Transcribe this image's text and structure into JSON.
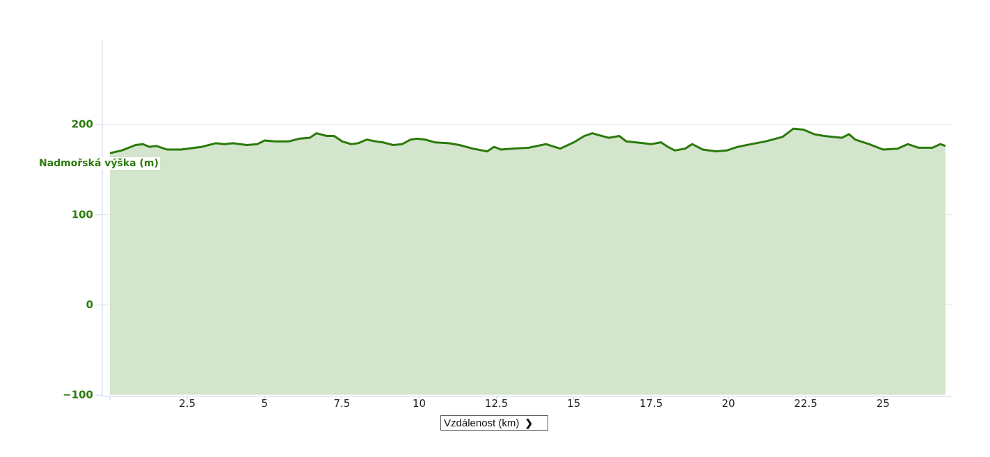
{
  "chart_data": {
    "type": "area",
    "title": "",
    "ylabel": "Nadmořská výška (m)",
    "xlabel": "Vzdálenost (km)",
    "ylim": [
      -100,
      300
    ],
    "xlim": [
      0,
      27.3
    ],
    "yticks": [
      -100,
      0,
      100,
      200
    ],
    "ytick_labels": [
      "−100",
      "0",
      "100",
      "200"
    ],
    "xticks": [
      2.5,
      5,
      7.5,
      10,
      12.5,
      15,
      17.5,
      20,
      22.5,
      25
    ],
    "xtick_labels": [
      "2.5",
      "5",
      "7.5",
      "10",
      "12.5",
      "15",
      "17.5",
      "20",
      "22.5",
      "25"
    ],
    "grid": true,
    "colors": {
      "line": "#2b7a0b",
      "fill": "#d3e5cc",
      "axis": "#ccd6eb",
      "grid": "#e6e6e6"
    },
    "series": [
      {
        "x": [
          0,
          0.38,
          0.83,
          1.06,
          1.28,
          1.5,
          1.85,
          2.3,
          2.97,
          3.42,
          3.7,
          3.98,
          4.43,
          4.77,
          5,
          5.33,
          5.78,
          6.12,
          6.46,
          6.68,
          7.02,
          7.25,
          7.51,
          7.8,
          8.03,
          8.3,
          8.6,
          8.82,
          9.16,
          9.45,
          9.72,
          9.94,
          10.2,
          10.5,
          10.96,
          11.3,
          11.74,
          12.2,
          12.42,
          12.65,
          13,
          13.54,
          14.1,
          14.56,
          15,
          15.34,
          15.6,
          15.8,
          16.13,
          16.47,
          16.7,
          17.26,
          17.5,
          17.82,
          18.04,
          18.27,
          18.6,
          18.83,
          19.17,
          19.6,
          19.95,
          20.3,
          20.74,
          21.2,
          21.75,
          22.1,
          22.43,
          22.77,
          23.1,
          23.67,
          23.9,
          24.1,
          24.55,
          25,
          25.47,
          25.8,
          26.15,
          26.6,
          26.85,
          27.02
        ],
        "y": [
          168,
          171,
          177,
          178,
          175,
          176,
          172,
          172,
          175,
          179,
          178,
          179,
          177,
          178,
          182,
          181,
          181,
          184,
          185,
          190,
          187,
          187,
          181,
          178,
          179,
          183,
          181,
          180,
          177,
          178,
          183,
          184,
          183,
          180,
          179,
          177,
          173,
          170,
          175,
          172,
          173,
          174,
          178,
          173,
          180,
          187,
          190,
          188,
          185,
          187,
          181,
          179,
          178,
          180,
          175,
          171,
          173,
          178,
          172,
          170,
          171,
          175,
          178,
          181,
          186,
          195,
          194,
          189,
          187,
          185,
          189,
          183,
          178,
          172,
          173,
          178,
          174,
          174,
          178,
          176
        ]
      }
    ]
  },
  "x_axis_selector": {
    "selected": "Vzdálenost (km)",
    "icon": "chevron-down-icon"
  }
}
